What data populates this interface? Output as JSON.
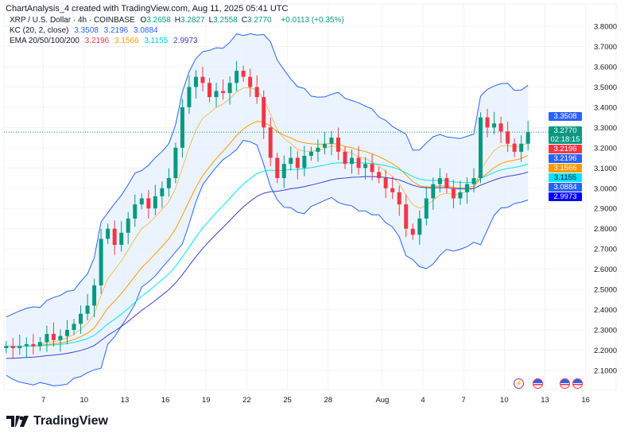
{
  "header": "ChartAnalysis_4 created with TradingView.com, Aug 11, 2025 05:41 UTC",
  "legend": {
    "symbol": "XRP / U.S. Dollar · 4h · COINBASE",
    "ohlc": [
      {
        "k": "O",
        "v": "3.2658"
      },
      {
        "k": "H",
        "v": "3.2827"
      },
      {
        "k": "L",
        "v": "3.2558"
      },
      {
        "k": "C",
        "v": "3.2770"
      }
    ],
    "change": "+0.0113 (+0.35%)",
    "kc_label": "KC (20, 2, close)",
    "kc_values": [
      "3.3508",
      "3.2196",
      "3.0884"
    ],
    "ema_label": "EMA 20/50/100/200",
    "ema_values": [
      "3.2196",
      "3.1566",
      "3.1155",
      "2.9973"
    ]
  },
  "price_tags": [
    {
      "v": "3.3508",
      "color": "#2962ff"
    },
    {
      "v": "3.2770",
      "sub": "02:18:15",
      "color": "#089981"
    },
    {
      "v": "3.2196",
      "color": "#f23645"
    },
    {
      "v": "3.2196",
      "color": "#2962ff"
    },
    {
      "v": "3.1566",
      "color": "#ff9800"
    },
    {
      "v": "3.1155",
      "color": "#00e5ff"
    },
    {
      "v": "3.0884",
      "color": "#2962ff"
    },
    {
      "v": "2.9973",
      "color": "#0000ff"
    }
  ],
  "events": [
    {
      "icon": "lightning-icon"
    },
    {
      "icon": "us-flag-icon"
    },
    {
      "icon": "us-flag-icon"
    },
    {
      "icon": "us-flag-icon"
    }
  ],
  "brand": "TradingView",
  "chart_data": {
    "type": "candlestick",
    "timeframe": "4h",
    "ylim": [
      2.05,
      3.85
    ],
    "y_ticks": [
      "3.8000",
      "3.7000",
      "3.6000",
      "3.5000",
      "3.4000",
      "3.3000",
      "3.2000",
      "3.1000",
      "3.0000",
      "2.9000",
      "2.8000",
      "2.7000",
      "2.6000",
      "2.5000",
      "2.4000",
      "2.3000",
      "2.2000",
      "2.1000"
    ],
    "x_ticks": [
      {
        "label": "7",
        "day": 3
      },
      {
        "label": "10",
        "day": 6
      },
      {
        "label": "13",
        "day": 9
      },
      {
        "label": "16",
        "day": 12
      },
      {
        "label": "19",
        "day": 15
      },
      {
        "label": "22",
        "day": 18
      },
      {
        "label": "25",
        "day": 21
      },
      {
        "label": "28",
        "day": 24
      },
      {
        "label": "Aug",
        "day": 28
      },
      {
        "label": "4",
        "day": 31
      },
      {
        "label": "7",
        "day": 34
      },
      {
        "label": "10",
        "day": 37
      },
      {
        "label": "13",
        "day": 40
      },
      {
        "label": "16",
        "day": 43
      }
    ],
    "start": "2025-07-04",
    "bar_interval": "12h",
    "closes": [
      2.22,
      2.21,
      2.22,
      2.23,
      2.22,
      2.24,
      2.28,
      2.25,
      2.27,
      2.3,
      2.33,
      2.38,
      2.42,
      2.52,
      2.75,
      2.8,
      2.72,
      2.78,
      2.85,
      2.92,
      2.95,
      2.9,
      2.96,
      3.0,
      3.05,
      3.2,
      3.4,
      3.5,
      3.55,
      3.52,
      3.45,
      3.48,
      3.47,
      3.52,
      3.58,
      3.55,
      3.5,
      3.45,
      3.3,
      3.15,
      3.05,
      3.12,
      3.15,
      3.1,
      3.16,
      3.18,
      3.2,
      3.22,
      3.25,
      3.18,
      3.12,
      3.15,
      3.1,
      3.12,
      3.08,
      3.05,
      3.0,
      2.98,
      2.92,
      2.8,
      2.77,
      2.85,
      2.95,
      3.02,
      3.05,
      3.0,
      2.95,
      2.98,
      3.02,
      3.05,
      3.35,
      3.3,
      3.32,
      3.28,
      3.22,
      3.18,
      3.22,
      3.277
    ],
    "last_price": 3.277,
    "colors": {
      "up": "#089981",
      "down": "#f23645",
      "kc": "#2962ff",
      "kc_fill": "#e3effd",
      "ema20": "#f23645",
      "ema50": "#ff9800",
      "ema100": "#00e5ff",
      "ema200": "#3f3fcf"
    }
  }
}
